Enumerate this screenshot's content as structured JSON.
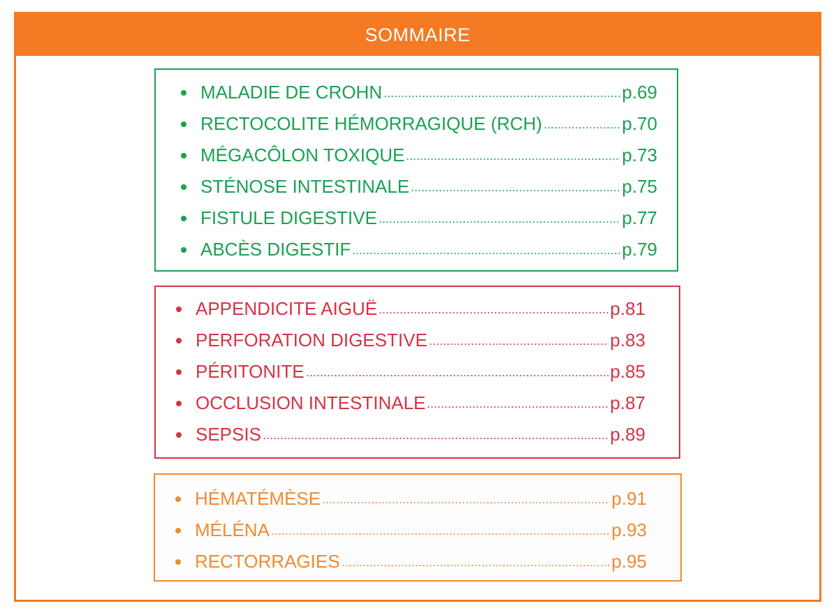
{
  "title": "SOMMAIRE",
  "colors": {
    "accent_orange": "#f47a24",
    "green": "#1aa152",
    "red": "#d63343",
    "orange": "#f08a33"
  },
  "sections": [
    {
      "color": "green",
      "items": [
        {
          "label": "MALADIE DE CROHN",
          "page": "p.69"
        },
        {
          "label": "RECTOCOLITE HÉMORRAGIQUE (RCH)",
          "page": "p.70"
        },
        {
          "label": "MÉGACÔLON TOXIQUE",
          "page": "p.73"
        },
        {
          "label": "STÉNOSE INTESTINALE",
          "page": "p.75"
        },
        {
          "label": "FISTULE DIGESTIVE",
          "page": "p.77"
        },
        {
          "label": "ABCÈS DIGESTIF",
          "page": "p.79"
        }
      ]
    },
    {
      "color": "red",
      "items": [
        {
          "label": "APPENDICITE AIGUË",
          "page": "p.81"
        },
        {
          "label": "PERFORATION DIGESTIVE",
          "page": "p.83"
        },
        {
          "label": "PÉRITONITE",
          "page": "p.85"
        },
        {
          "label": "OCCLUSION INTESTINALE",
          "page": "p.87"
        },
        {
          "label": "SEPSIS",
          "page": "p.89"
        }
      ]
    },
    {
      "color": "orange",
      "items": [
        {
          "label": "HÉMATÉMÈSE",
          "page": "p.91"
        },
        {
          "label": "MÉLÉNA",
          "page": "p.93"
        },
        {
          "label": "RECTORRAGIES",
          "page": "p.95"
        }
      ]
    }
  ]
}
